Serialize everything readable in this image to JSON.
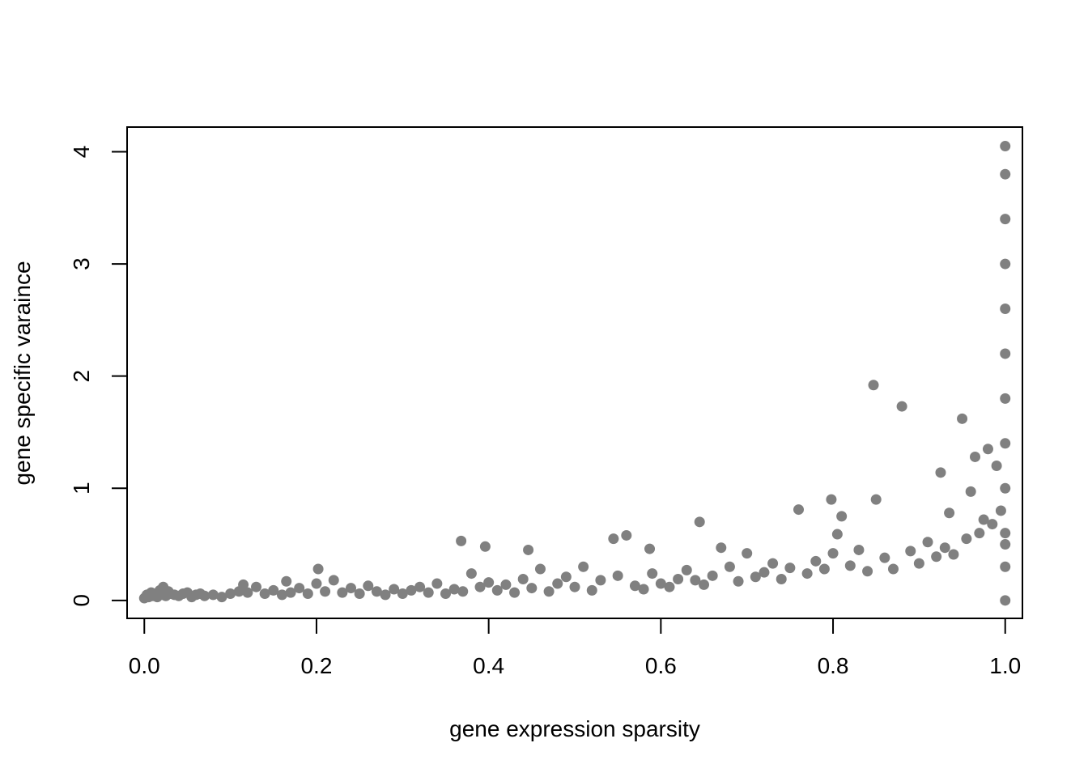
{
  "chart_data": {
    "type": "scatter",
    "title": "",
    "xlabel": "gene expression sparsity",
    "ylabel": "gene specific varaince",
    "xlim": [
      -0.02,
      1.02
    ],
    "ylim": [
      -0.16,
      4.22
    ],
    "x_ticks": [
      0.0,
      0.2,
      0.4,
      0.6,
      0.8,
      1.0
    ],
    "x_tick_labels": [
      "0.0",
      "0.2",
      "0.4",
      "0.6",
      "0.8",
      "1.0"
    ],
    "y_ticks": [
      0,
      1,
      2,
      3,
      4
    ],
    "y_tick_labels": [
      "0",
      "1",
      "2",
      "3",
      "4"
    ],
    "grid": false,
    "legend": "none",
    "point_color": "#808080",
    "series": [
      {
        "x": [
          0.0,
          0.003,
          0.005,
          0.008,
          0.01,
          0.012,
          0.015,
          0.018,
          0.02,
          0.022,
          0.025,
          0.028,
          0.03,
          0.035,
          0.04,
          0.045,
          0.05,
          0.055,
          0.06,
          0.065,
          0.07,
          0.08,
          0.09,
          0.1,
          0.11,
          0.115,
          0.12,
          0.13,
          0.14,
          0.15,
          0.16,
          0.165,
          0.17,
          0.18,
          0.19,
          0.2,
          0.202,
          0.21,
          0.22,
          0.23,
          0.24,
          0.25,
          0.26,
          0.27,
          0.28,
          0.29,
          0.3,
          0.31,
          0.32,
          0.33,
          0.34,
          0.35,
          0.36,
          0.368,
          0.37,
          0.38,
          0.39,
          0.396,
          0.4,
          0.41,
          0.42,
          0.43,
          0.44,
          0.446,
          0.45,
          0.46,
          0.47,
          0.48,
          0.49,
          0.5,
          0.51,
          0.52,
          0.53,
          0.545,
          0.55,
          0.56,
          0.57,
          0.58,
          0.587,
          0.59,
          0.6,
          0.61,
          0.62,
          0.63,
          0.64,
          0.645,
          0.65,
          0.66,
          0.67,
          0.68,
          0.69,
          0.7,
          0.71,
          0.72,
          0.73,
          0.74,
          0.75,
          0.76,
          0.77,
          0.78,
          0.79,
          0.798,
          0.8,
          0.805,
          0.81,
          0.82,
          0.83,
          0.84,
          0.847,
          0.85,
          0.86,
          0.87,
          0.88,
          0.89,
          0.9,
          0.91,
          0.92,
          0.925,
          0.93,
          0.935,
          0.94,
          0.95,
          0.955,
          0.96,
          0.965,
          0.97,
          0.975,
          0.98,
          0.985,
          0.99,
          0.995,
          1.0,
          1.0,
          1.0,
          1.0,
          1.0,
          1.0,
          1.0,
          1.0,
          1.0,
          1.0,
          1.0,
          1.0,
          1.0
        ],
        "y": [
          0.02,
          0.05,
          0.03,
          0.07,
          0.04,
          0.06,
          0.03,
          0.09,
          0.05,
          0.12,
          0.04,
          0.08,
          0.06,
          0.05,
          0.04,
          0.06,
          0.07,
          0.03,
          0.05,
          0.06,
          0.04,
          0.05,
          0.03,
          0.06,
          0.08,
          0.14,
          0.07,
          0.12,
          0.06,
          0.09,
          0.05,
          0.17,
          0.07,
          0.11,
          0.06,
          0.15,
          0.28,
          0.08,
          0.18,
          0.07,
          0.11,
          0.06,
          0.13,
          0.08,
          0.05,
          0.1,
          0.06,
          0.09,
          0.12,
          0.07,
          0.15,
          0.06,
          0.1,
          0.53,
          0.08,
          0.24,
          0.12,
          0.48,
          0.16,
          0.09,
          0.14,
          0.07,
          0.19,
          0.45,
          0.11,
          0.28,
          0.08,
          0.15,
          0.21,
          0.12,
          0.3,
          0.09,
          0.18,
          0.55,
          0.22,
          0.58,
          0.13,
          0.1,
          0.46,
          0.24,
          0.15,
          0.12,
          0.19,
          0.27,
          0.18,
          0.7,
          0.14,
          0.22,
          0.47,
          0.3,
          0.17,
          0.42,
          0.21,
          0.25,
          0.33,
          0.19,
          0.29,
          0.81,
          0.24,
          0.35,
          0.28,
          0.9,
          0.42,
          0.59,
          0.75,
          0.31,
          0.45,
          0.26,
          1.92,
          0.9,
          0.38,
          0.28,
          1.73,
          0.44,
          0.33,
          0.52,
          0.39,
          1.14,
          0.47,
          0.78,
          0.41,
          1.62,
          0.55,
          0.97,
          1.28,
          0.6,
          0.72,
          1.35,
          0.68,
          1.2,
          0.8,
          0.0,
          0.3,
          0.6,
          1.0,
          1.4,
          1.8,
          2.2,
          2.6,
          3.0,
          3.4,
          3.8,
          4.05,
          0.5
        ]
      }
    ]
  }
}
